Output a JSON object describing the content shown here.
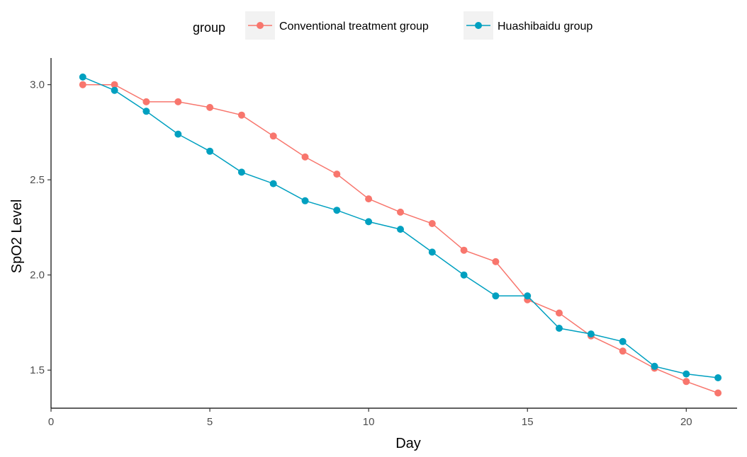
{
  "chart_data": {
    "type": "line",
    "xlabel": "Day",
    "ylabel": "SpO2 Level",
    "xlim": [
      0,
      21.6
    ],
    "ylim": [
      1.3,
      3.14
    ],
    "x_ticks": [
      0,
      5,
      10,
      15,
      20
    ],
    "y_ticks": [
      1.5,
      2.0,
      2.5,
      3.0
    ],
    "x_tick_labels": [
      "0",
      "5",
      "10",
      "15",
      "20"
    ],
    "y_tick_labels": [
      "1.5",
      "2.0",
      "2.5",
      "3.0"
    ],
    "grid": false,
    "legend": {
      "title": "group",
      "position": "top"
    },
    "x": [
      1,
      2,
      3,
      4,
      5,
      6,
      7,
      8,
      9,
      10,
      11,
      12,
      13,
      14,
      15,
      16,
      17,
      18,
      19,
      20,
      21
    ],
    "series": [
      {
        "name": "Conventional treatment group",
        "color": "#F8766D",
        "values": [
          3.0,
          3.0,
          2.91,
          2.91,
          2.88,
          2.84,
          2.73,
          2.62,
          2.53,
          2.4,
          2.33,
          2.27,
          2.13,
          2.07,
          1.87,
          1.8,
          1.68,
          1.6,
          1.51,
          1.44,
          1.38
        ]
      },
      {
        "name": "Huashibaidu group",
        "color": "#00A0C0",
        "values": [
          3.04,
          2.97,
          2.86,
          2.74,
          2.65,
          2.54,
          2.48,
          2.39,
          2.34,
          2.28,
          2.24,
          2.12,
          2.0,
          1.89,
          1.89,
          1.72,
          1.69,
          1.65,
          1.52,
          1.48,
          1.46
        ]
      }
    ]
  }
}
